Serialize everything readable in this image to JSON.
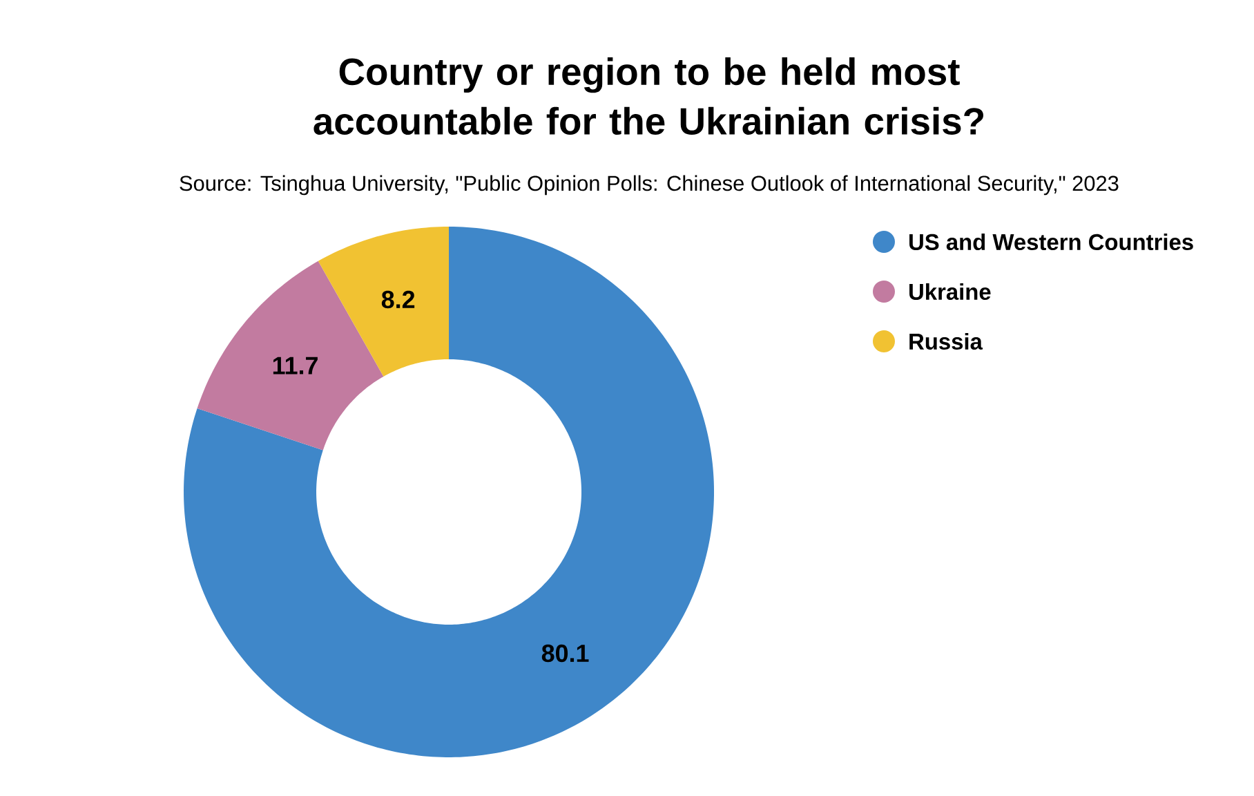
{
  "chart_data": {
    "type": "donut",
    "title": "Country or region to be held most accountable for the Ukrainian crisis?",
    "annotations": [
      "Source: Tsinghua University, \"Public Opinion Polls: Chinese Outlook of International Security,\" 2023"
    ],
    "categories": [
      "US and Western Countries",
      "Ukraine",
      "Russia"
    ],
    "values": [
      80.1,
      11.7,
      8.2
    ],
    "colors": [
      "#3f87c9",
      "#c27ba0",
      "#f1c232"
    ],
    "data_labels": true,
    "legend": "top right"
  }
}
